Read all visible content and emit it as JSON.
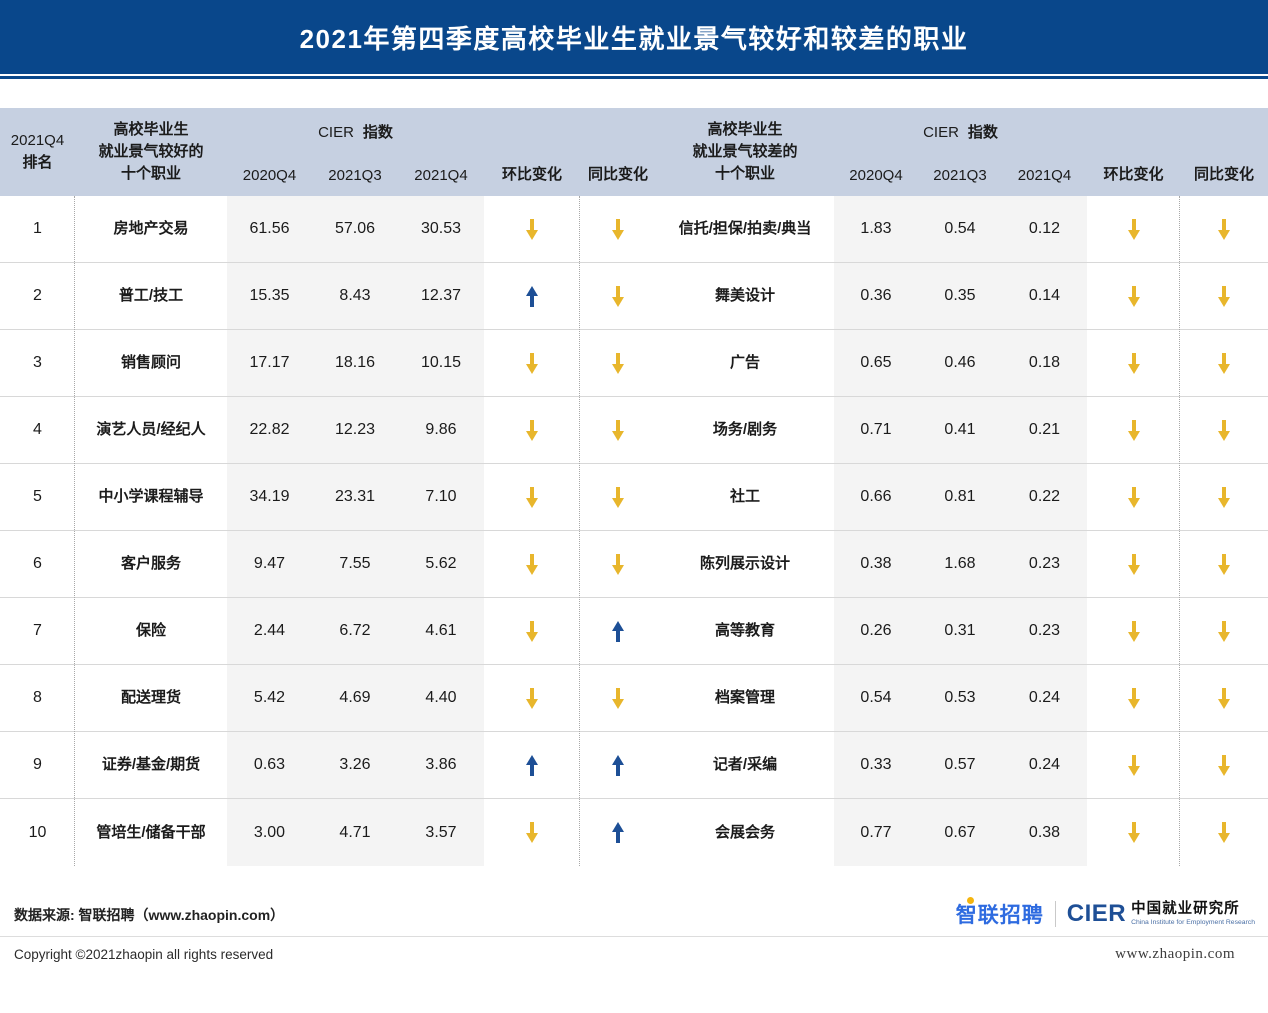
{
  "banner": {
    "title": "2021年第四季度高校毕业生就业景气较好和较差的职业"
  },
  "header": {
    "rank_lines": [
      "2021Q4",
      "排名"
    ],
    "good_title_lines": [
      "高校毕业生",
      "就业景气较好的",
      "十个职业"
    ],
    "bad_title_lines": [
      "高校毕业生",
      "就业景气较差的",
      "十个职业"
    ],
    "cier_en": "CIER",
    "cier_zh": "指数",
    "quarters": [
      "2020Q4",
      "2021Q3",
      "2021Q4"
    ],
    "mom_label": "环比变化",
    "yoy_label": "同比变化"
  },
  "chart_data": {
    "type": "table",
    "title": "2021年第四季度高校毕业生就业景气较好和较差的职业",
    "tables": [
      {
        "name": "高校毕业生就业景气较好的十个职业",
        "columns": [
          "2021Q4排名",
          "职业",
          "CIER指数2020Q4",
          "CIER指数2021Q3",
          "CIER指数2021Q4",
          "环比变化",
          "同比变化"
        ],
        "rows": [
          [
            "1",
            "房地产交易",
            "61.56",
            "57.06",
            "30.53",
            "down",
            "down"
          ],
          [
            "2",
            "普工/技工",
            "15.35",
            "8.43",
            "12.37",
            "up",
            "down"
          ],
          [
            "3",
            "销售顾问",
            "17.17",
            "18.16",
            "10.15",
            "down",
            "down"
          ],
          [
            "4",
            "演艺人员/经纪人",
            "22.82",
            "12.23",
            "9.86",
            "down",
            "down"
          ],
          [
            "5",
            "中小学课程辅导",
            "34.19",
            "23.31",
            "7.10",
            "down",
            "down"
          ],
          [
            "6",
            "客户服务",
            "9.47",
            "7.55",
            "5.62",
            "down",
            "down"
          ],
          [
            "7",
            "保险",
            "2.44",
            "6.72",
            "4.61",
            "down",
            "up"
          ],
          [
            "8",
            "配送理货",
            "5.42",
            "4.69",
            "4.40",
            "down",
            "down"
          ],
          [
            "9",
            "证券/基金/期货",
            "0.63",
            "3.26",
            "3.86",
            "up",
            "up"
          ],
          [
            "10",
            "管培生/储备干部",
            "3.00",
            "4.71",
            "3.57",
            "down",
            "up"
          ]
        ]
      },
      {
        "name": "高校毕业生就业景气较差的十个职业",
        "columns": [
          "职业",
          "CIER指数2020Q4",
          "CIER指数2021Q3",
          "CIER指数2021Q4",
          "环比变化",
          "同比变化"
        ],
        "rows": [
          [
            "信托/担保/拍卖/典当",
            "1.83",
            "0.54",
            "0.12",
            "down",
            "down"
          ],
          [
            "舞美设计",
            "0.36",
            "0.35",
            "0.14",
            "down",
            "down"
          ],
          [
            "广告",
            "0.65",
            "0.46",
            "0.18",
            "down",
            "down"
          ],
          [
            "场务/剧务",
            "0.71",
            "0.41",
            "0.21",
            "down",
            "down"
          ],
          [
            "社工",
            "0.66",
            "0.81",
            "0.22",
            "down",
            "down"
          ],
          [
            "陈列展示设计",
            "0.38",
            "1.68",
            "0.23",
            "down",
            "down"
          ],
          [
            "高等教育",
            "0.26",
            "0.31",
            "0.23",
            "down",
            "down"
          ],
          [
            "档案管理",
            "0.54",
            "0.53",
            "0.24",
            "down",
            "down"
          ],
          [
            "记者/采编",
            "0.33",
            "0.57",
            "0.24",
            "down",
            "down"
          ],
          [
            "会展会务",
            "0.77",
            "0.67",
            "0.38",
            "down",
            "down"
          ]
        ]
      }
    ]
  },
  "footer": {
    "source": "数据来源: 智联招聘（www.zhaopin.com）",
    "copyright": "Copyright ©2021zhaopin all rights reserved",
    "logo_zhaopin": "智联招聘",
    "logo_cier": "CIER",
    "logo_cier_cn": "中国就业研究所",
    "logo_cier_en": "China Institute for Employment Research",
    "website": "www.zhaopin.com"
  },
  "colors": {
    "banner_bg": "#09478B",
    "header_bg": "#C6D0E1",
    "band_bg": "#F4F4F4",
    "arrow_down": "#E8B62C",
    "arrow_up": "#1D4F96"
  }
}
